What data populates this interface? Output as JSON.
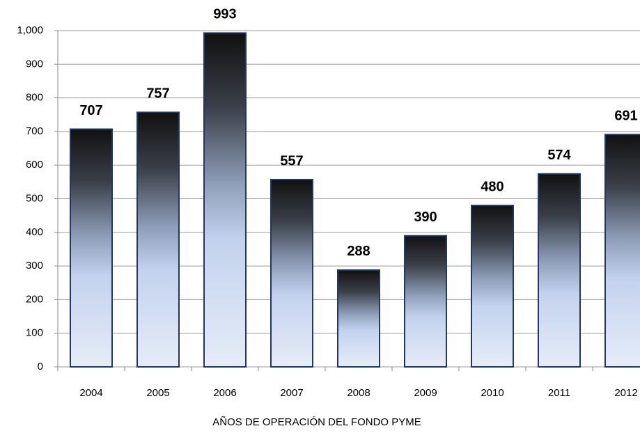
{
  "chart_data": {
    "type": "bar",
    "x_label": "AÑOS DE OPERACIÓN DEL FONDO PYME",
    "categories": [
      "2004",
      "2005",
      "2006",
      "2007",
      "2008",
      "2009",
      "2010",
      "2011",
      "2012"
    ],
    "values": [
      707,
      757,
      993,
      557,
      288,
      390,
      480,
      574,
      691
    ],
    "color": "#1f3864",
    "ylim": [
      0,
      1000
    ],
    "yticks": [
      0,
      100,
      200,
      300,
      400,
      500,
      600,
      700,
      800,
      900,
      {
        "value": 1000,
        "label": "1,000"
      }
    ],
    "grid": true
  }
}
